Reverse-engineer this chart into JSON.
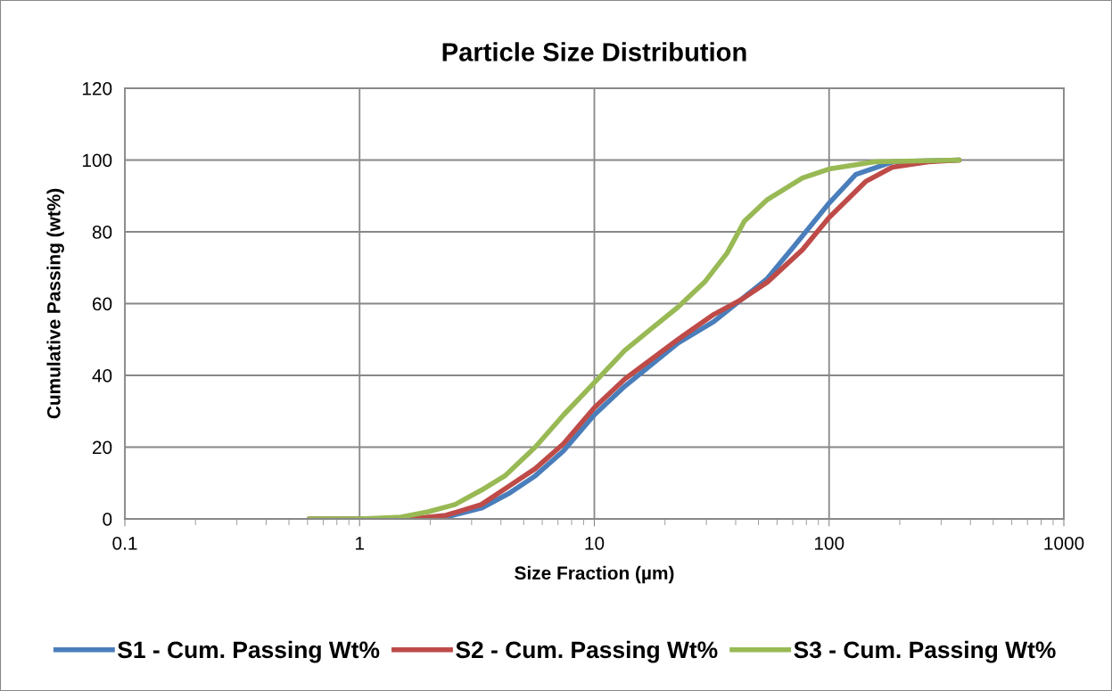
{
  "chart_data": {
    "type": "line",
    "title": "Particle Size Distribution",
    "xlabel": "Size Fraction (µm)",
    "ylabel": "Cumulative Passing (wt%)",
    "log": "x",
    "xlim": [
      0.1,
      1000
    ],
    "xticks": [
      0.1,
      1,
      10,
      100,
      1000
    ],
    "ylim": [
      0,
      120
    ],
    "yticks": [
      0,
      20,
      40,
      60,
      80,
      100,
      120
    ],
    "grid": true,
    "legend": "bottom",
    "marker": "none",
    "line_style": "solid",
    "series": [
      {
        "name": "S1 - Cum. Passing Wt%",
        "color": "#4a7ebb",
        "x": [
          0.61,
          1.65,
          2.33,
          3.3,
          4.3,
          5.6,
          7.4,
          10,
          13.5,
          22.7,
          32.3,
          42,
          54.6,
          71,
          100,
          130,
          186,
          358
        ],
        "values": [
          0,
          0,
          0.5,
          3,
          7,
          12,
          19,
          29,
          37,
          49,
          55,
          61,
          67,
          76,
          88,
          96,
          99.5,
          100
        ]
      },
      {
        "name": "S2 - Cum. Passing Wt%",
        "color": "#be4b48",
        "x": [
          0.61,
          1.65,
          2.33,
          3.3,
          4.3,
          5.6,
          7.4,
          10,
          13.5,
          22.7,
          32.3,
          42,
          54.6,
          77,
          100,
          143,
          186,
          265,
          358
        ],
        "values": [
          0,
          0,
          1,
          4,
          9,
          14,
          21,
          31,
          39,
          50,
          57,
          61,
          66,
          75,
          84,
          94,
          98,
          99.5,
          100
        ]
      },
      {
        "name": "S3 - Cum. Passing Wt%",
        "color": "#98b954",
        "x": [
          0.61,
          1,
          1.5,
          1.96,
          2.55,
          3.3,
          4.16,
          5.6,
          7.4,
          10,
          13.5,
          17.5,
          22.7,
          29.5,
          36.7,
          43.6,
          54.6,
          77,
          100,
          156,
          358
        ],
        "values": [
          0,
          0,
          0.5,
          2,
          4,
          8,
          12,
          20,
          29,
          38,
          47,
          53,
          59,
          66,
          74,
          83,
          89,
          95,
          97.5,
          99.5,
          100
        ]
      }
    ]
  }
}
